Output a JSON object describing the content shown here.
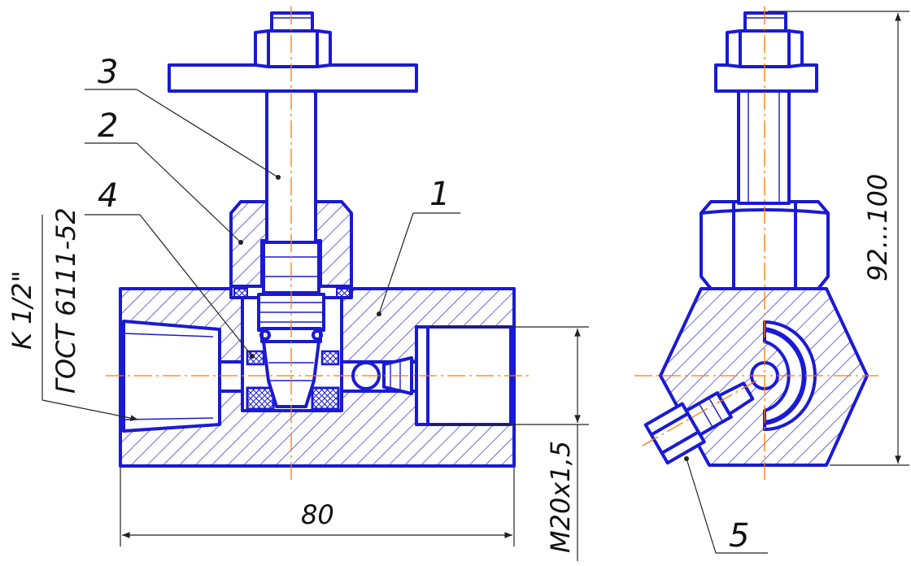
{
  "callouts": {
    "p1": "1",
    "p2": "2",
    "p3": "3",
    "p4": "4",
    "p5": "5"
  },
  "dimensions": {
    "length": "80",
    "thread": "M20x1,5",
    "height": "92...100"
  },
  "notes": {
    "pipe_thread": "K 1/2\"",
    "standard": "ГОСТ 6111-52"
  },
  "colors": {
    "outline": "#1a1ad4",
    "axis": "#ff7a00",
    "annotation": "#222222"
  }
}
